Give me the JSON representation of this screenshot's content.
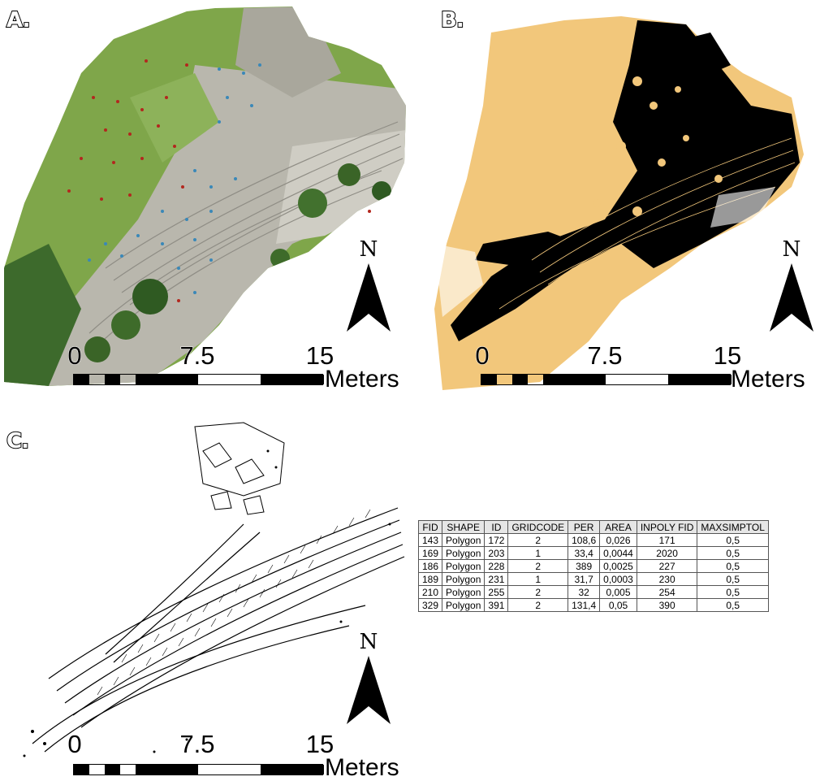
{
  "panels": [
    {
      "label": "A.",
      "north": "N",
      "scale": {
        "ticks": [
          "0",
          "7.5",
          "15"
        ],
        "unit": "Meters"
      }
    },
    {
      "label": "B.",
      "north": "N",
      "scale": {
        "ticks": [
          "0",
          "7.5",
          "15"
        ],
        "unit": "Meters"
      }
    },
    {
      "label": "C.",
      "north": "N",
      "scale": {
        "ticks": [
          "0",
          "7.5",
          "15"
        ],
        "unit": "Meters"
      }
    }
  ],
  "attribute_table": {
    "columns": [
      "FID",
      "SHAPE",
      "ID",
      "GRIDCODE",
      "PER",
      "AREA",
      "INPOLY FID",
      "MAXSIMPTOL"
    ],
    "rows": [
      [
        "143",
        "Polygon",
        "172",
        "2",
        "108,6",
        "0,026",
        "171",
        "0,5"
      ],
      [
        "169",
        "Polygon",
        "203",
        "1",
        "33,4",
        "0,0044",
        "2020",
        "0,5"
      ],
      [
        "186",
        "Polygon",
        "228",
        "2",
        "389",
        "0,0025",
        "227",
        "0,5"
      ],
      [
        "189",
        "Polygon",
        "231",
        "1",
        "31,7",
        "0,0003",
        "230",
        "0,5"
      ],
      [
        "210",
        "Polygon",
        "255",
        "2",
        "32",
        "0,005",
        "254",
        "0,5"
      ],
      [
        "329",
        "Polygon",
        "391",
        "2",
        "131,4",
        "0,05",
        "390",
        "0,5"
      ]
    ]
  },
  "colors": {
    "grass": "#7fa64a",
    "rock": "#b9b7ad",
    "sand_class": "#f2c77b",
    "stone_class": "#000000",
    "sample_dot_red": "#b3271e",
    "sample_dot_blue": "#3a88b8"
  }
}
